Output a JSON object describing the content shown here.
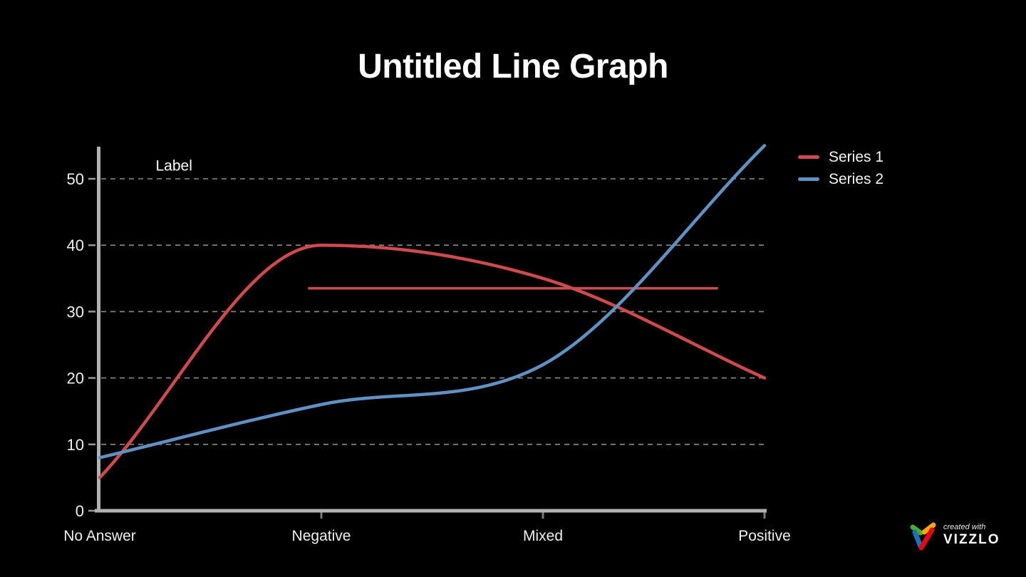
{
  "title": "Untitled Line Graph",
  "chart_data": {
    "type": "line",
    "categories": [
      "No Answer",
      "Negative",
      "Mixed",
      "Positive"
    ],
    "series": [
      {
        "name": "Series 1",
        "color": "#cf4a4c",
        "values": [
          5,
          40,
          35,
          20
        ]
      },
      {
        "name": "Series 2",
        "color": "#5f92c3",
        "values": [
          8,
          16,
          22,
          55
        ]
      }
    ],
    "yticks": [
      0,
      10,
      20,
      30,
      40,
      50
    ],
    "ylim": [
      0,
      55
    ],
    "grid": "dashed-horizontal",
    "legend_position": "top-right",
    "smoothing": "monotone",
    "annotations": {
      "label": {
        "text": "Label",
        "x": 0.335,
        "y": 52
      },
      "hline": {
        "value": 33.5,
        "from_x": 0.94,
        "to_x": 2.79
      }
    },
    "axis_color": "#b2b2b2",
    "grid_color": "#8a8a8a",
    "tick_color": "#9a9a9a",
    "category_tick_color": "#7a7a7a",
    "tick_label_color": "#f0f0f0",
    "annotation_text_color": "#ffffff"
  },
  "footer": {
    "created_with": "created with",
    "brand": "VIZZLO",
    "logo_colors": [
      "#43b02a",
      "#f6a800",
      "#1d71b8",
      "#e30613"
    ]
  }
}
